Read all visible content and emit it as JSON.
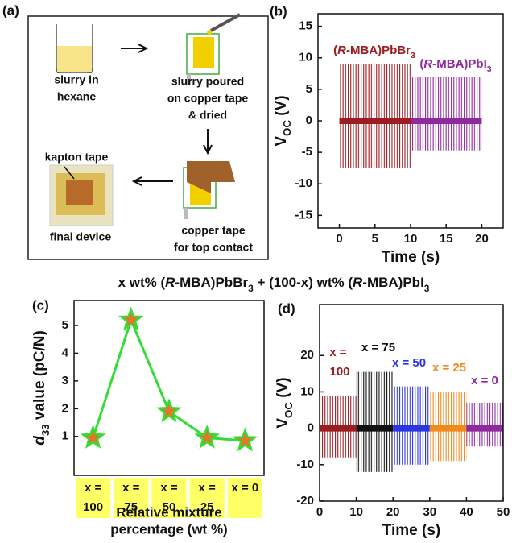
{
  "title": "x wt% (R-MBA)PbBr3 + (100-x) wt% (R-MBA)PbI3",
  "diagram": {
    "panel": "(a)",
    "steps": [
      [
        "slurry in",
        "hexane"
      ],
      [
        "slurry poured",
        "on copper tape",
        "& dried"
      ],
      [
        "copper tape",
        "for top contact"
      ],
      [
        "final device"
      ]
    ],
    "annotation": "kapton tape"
  },
  "chart_data": [
    {
      "type": "signal",
      "panel": "(b)",
      "x_label": "Time (s)",
      "y_label": "VOC (V)",
      "xlim": [
        -3,
        23
      ],
      "xticks": [
        0,
        5,
        10,
        15,
        20
      ],
      "ylim": [
        -17,
        17
      ],
      "yticks": [
        -15,
        -10,
        -5,
        0,
        5,
        10,
        15
      ],
      "series": [
        {
          "name": "(R-MBA)PbBr3",
          "color": "#9b1c22",
          "x": [
            0,
            10
          ],
          "values": [
            9,
            -7.5
          ]
        },
        {
          "name": "(R-MBA)PbI3",
          "color": "#8e2a9e",
          "x": [
            10,
            20
          ],
          "values": [
            7,
            -4.7
          ]
        }
      ]
    },
    {
      "type": "line",
      "panel": "(c)",
      "x_label": [
        "Relative mixture",
        "percentage (wt %)"
      ],
      "y_label": "d33 value (pC/N)",
      "categories": [
        "x = 100",
        "x = 75",
        "x = 50",
        "x = 25",
        "x = 0"
      ],
      "values": [
        0.95,
        5.2,
        1.9,
        0.95,
        0.85
      ],
      "color": "#33dd33",
      "marker_color": "#e8742a",
      "ylim": [
        -0.4,
        5.9
      ],
      "yticks": [
        1,
        2,
        3,
        4,
        5
      ]
    },
    {
      "type": "signal",
      "panel": "(d)",
      "x_label": "Time (s)",
      "y_label": "VOC (V)",
      "xlim": [
        0,
        50
      ],
      "xticks": [
        0,
        10,
        20,
        30,
        40,
        50
      ],
      "ylim": [
        -20,
        34
      ],
      "yticks": [
        -20,
        -10,
        0,
        10,
        20
      ],
      "series": [
        {
          "name": "x = 100",
          "color": "#9b1c22",
          "x": [
            0,
            10
          ],
          "values": [
            9,
            -8
          ]
        },
        {
          "name": "x = 75",
          "color": "#111111",
          "x": [
            10,
            20
          ],
          "values": [
            15.5,
            -12
          ]
        },
        {
          "name": "x = 50",
          "color": "#2b35e0",
          "x": [
            20,
            30
          ],
          "values": [
            11.5,
            -10
          ]
        },
        {
          "name": "x = 25",
          "color": "#f08a1c",
          "x": [
            30,
            40
          ],
          "values": [
            10,
            -9
          ]
        },
        {
          "name": "x = 0",
          "color": "#8e2a9e",
          "x": [
            40,
            50
          ],
          "values": [
            7,
            -5
          ]
        }
      ]
    }
  ]
}
